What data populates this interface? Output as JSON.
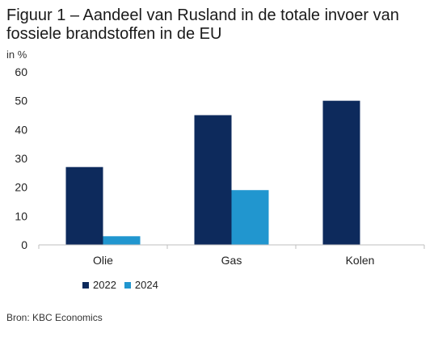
{
  "chart_data": {
    "type": "bar",
    "title": "Figuur 1 – Aandeel van Rusland in de totale invoer van fossiele brandstoffen in de EU",
    "unit": "in %",
    "categories": [
      "Olie",
      "Gas",
      "Kolen"
    ],
    "series": [
      {
        "name": "2022",
        "values": [
          27,
          45,
          50
        ],
        "color": "#0d2a5c"
      },
      {
        "name": "2024",
        "values": [
          3,
          19,
          0
        ],
        "color": "#2196cf"
      }
    ],
    "ylim": [
      0,
      60
    ],
    "yticks": [
      0,
      10,
      20,
      30,
      40,
      50,
      60
    ],
    "grid": false,
    "legend_position": "bottom-left"
  },
  "source": "Bron: KBC Economics"
}
